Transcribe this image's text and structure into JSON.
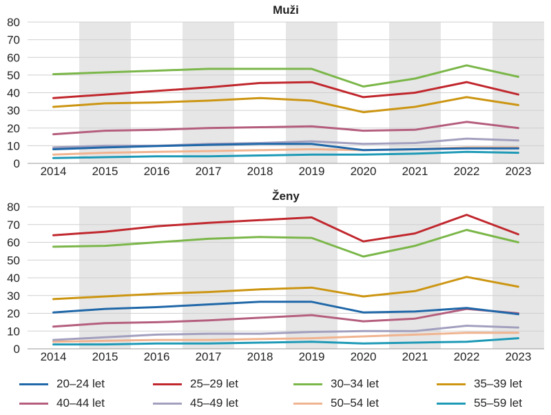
{
  "chart_data": [
    {
      "type": "line",
      "title": "Muži",
      "x": [
        "2014",
        "2015",
        "2016",
        "2017",
        "2018",
        "2019",
        "2020",
        "2021",
        "2022",
        "2023"
      ],
      "ylim": [
        0,
        80
      ],
      "yticks": [
        0,
        10,
        20,
        30,
        40,
        50,
        60,
        70,
        80
      ],
      "grid": true,
      "series": [
        {
          "name": "20–24 let",
          "color": "#1f67a8",
          "values": [
            8,
            9,
            9.8,
            10.5,
            11,
            11,
            7.5,
            8,
            8.5,
            8.5
          ]
        },
        {
          "name": "25–29 let",
          "color": "#c0272d",
          "values": [
            37,
            39,
            41,
            43,
            45.5,
            46,
            37.5,
            40,
            46,
            39
          ]
        },
        {
          "name": "30–34 let",
          "color": "#7ab648",
          "values": [
            50.5,
            51.5,
            52.5,
            53.5,
            53.5,
            53.5,
            43.5,
            48,
            55.5,
            49
          ]
        },
        {
          "name": "35–39 let",
          "color": "#cc9511",
          "values": [
            32,
            34,
            34.5,
            35.5,
            37,
            35.5,
            29,
            32,
            37.5,
            33
          ]
        },
        {
          "name": "40–44 let",
          "color": "#b45d7d",
          "values": [
            16.5,
            18.5,
            19,
            20,
            20.5,
            21,
            18.5,
            19,
            23.5,
            20
          ]
        },
        {
          "name": "45–49 let",
          "color": "#a29fbe",
          "values": [
            9,
            10,
            10,
            11,
            11.5,
            12.5,
            11,
            11.5,
            14,
            13
          ]
        },
        {
          "name": "50–54 let",
          "color": "#f0b38f",
          "values": [
            5,
            6,
            6.5,
            7,
            7.5,
            8,
            7.5,
            8,
            9,
            9
          ]
        },
        {
          "name": "55–59 let",
          "color": "#1c99b6",
          "values": [
            3,
            3.5,
            4,
            4,
            4.5,
            5,
            5,
            5.5,
            6.5,
            6
          ]
        }
      ]
    },
    {
      "type": "line",
      "title": "Ženy",
      "x": [
        "2014",
        "2015",
        "2016",
        "2017",
        "2018",
        "2019",
        "2020",
        "2021",
        "2022",
        "2023"
      ],
      "ylim": [
        0,
        80
      ],
      "yticks": [
        0,
        10,
        20,
        30,
        40,
        50,
        60,
        70,
        80
      ],
      "grid": true,
      "series": [
        {
          "name": "20–24 let",
          "color": "#1f67a8",
          "values": [
            20.5,
            22.5,
            23.5,
            25,
            26.5,
            26.5,
            20.5,
            21,
            23,
            19.5
          ]
        },
        {
          "name": "25–29 let",
          "color": "#c0272d",
          "values": [
            64,
            66,
            69,
            71,
            72.5,
            74,
            60.5,
            65,
            75.5,
            64.5
          ]
        },
        {
          "name": "30–34 let",
          "color": "#7ab648",
          "values": [
            57.5,
            58,
            60,
            62,
            63,
            62.5,
            52,
            58,
            67,
            60
          ]
        },
        {
          "name": "35–39 let",
          "color": "#cc9511",
          "values": [
            28,
            29.5,
            31,
            32,
            33.5,
            34.5,
            29.5,
            32.5,
            40.5,
            35
          ]
        },
        {
          "name": "40–44 let",
          "color": "#b45d7d",
          "values": [
            12.5,
            14.5,
            15,
            16,
            17.5,
            19,
            15.5,
            17,
            22.5,
            20
          ]
        },
        {
          "name": "45–49 let",
          "color": "#a29fbe",
          "values": [
            5,
            6.5,
            8,
            8.5,
            8.5,
            9.5,
            10,
            10,
            13,
            12
          ]
        },
        {
          "name": "50–54 let",
          "color": "#f0b38f",
          "values": [
            4,
            4.5,
            5,
            5,
            5.5,
            6,
            7,
            8,
            9,
            9
          ]
        },
        {
          "name": "55–59 let",
          "color": "#1c99b6",
          "values": [
            2.5,
            2.5,
            3,
            3,
            3.5,
            4,
            3,
            3.5,
            4,
            6
          ]
        }
      ]
    }
  ],
  "legend": [
    {
      "label": "20–24 let",
      "color": "#1f67a8"
    },
    {
      "label": "25–29 let",
      "color": "#c0272d"
    },
    {
      "label": "30–34 let",
      "color": "#7ab648"
    },
    {
      "label": "35–39 let",
      "color": "#cc9511"
    },
    {
      "label": "40–44 let",
      "color": "#b45d7d"
    },
    {
      "label": "45–49 let",
      "color": "#a29fbe"
    },
    {
      "label": "50–54 let",
      "color": "#f0b38f"
    },
    {
      "label": "55–59 let",
      "color": "#1c99b6"
    }
  ]
}
